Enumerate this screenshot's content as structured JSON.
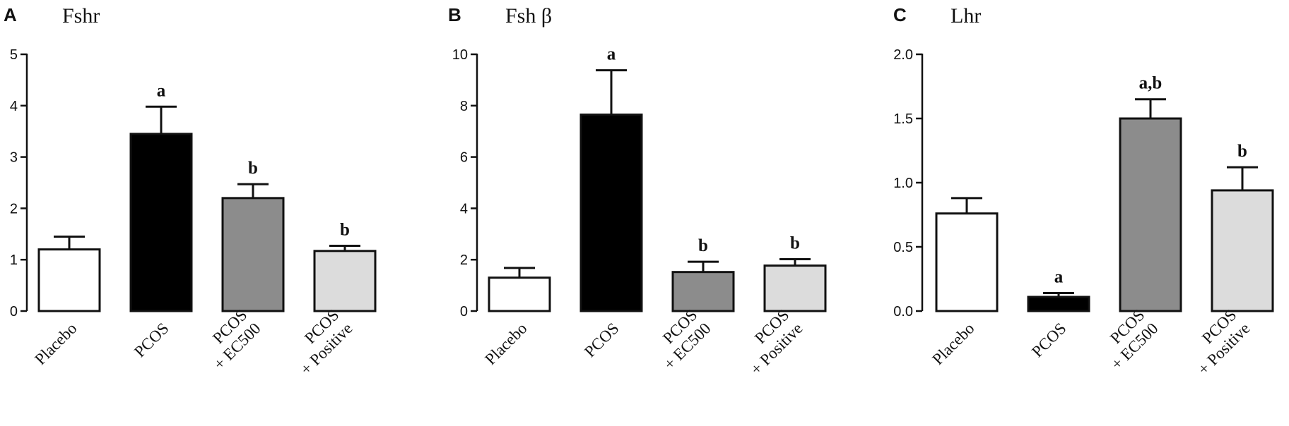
{
  "colors": {
    "axis": "#111111",
    "bar_stroke": "#111111",
    "bar_fills": [
      "#ffffff",
      "#000000",
      "#8c8c8c",
      "#dcdcdc"
    ]
  },
  "chart_data": [
    {
      "type": "bar",
      "panel": "A",
      "title": "Fshr",
      "categories": [
        [
          "Placebo"
        ],
        [
          "PCOS"
        ],
        [
          "PCOS",
          "+ EC500"
        ],
        [
          "PCOS",
          "+ Positive"
        ]
      ],
      "values": [
        1.2,
        3.45,
        2.2,
        1.17
      ],
      "errors": [
        0.25,
        0.53,
        0.27,
        0.1
      ],
      "annotations": [
        "",
        "a",
        "b",
        "b"
      ],
      "ylim": [
        0,
        5
      ],
      "yticks": [
        "0",
        "1",
        "2",
        "3",
        "4",
        "5"
      ],
      "ytick_values": [
        0,
        1,
        2,
        3,
        4,
        5
      ],
      "xlabel": "",
      "ylabel": "",
      "grid": false
    },
    {
      "type": "bar",
      "panel": "B",
      "title": "Fsh β",
      "categories": [
        [
          "Placebo"
        ],
        [
          "PCOS"
        ],
        [
          "PCOS",
          "+ EC500"
        ],
        [
          "PCOS",
          "+ Positive"
        ]
      ],
      "values": [
        1.3,
        7.65,
        1.52,
        1.77
      ],
      "errors": [
        0.38,
        1.73,
        0.4,
        0.25
      ],
      "annotations": [
        "",
        "a",
        "b",
        "b"
      ],
      "ylim": [
        0,
        10
      ],
      "yticks": [
        "0",
        "2",
        "4",
        "6",
        "8",
        "10"
      ],
      "ytick_values": [
        0,
        2,
        4,
        6,
        8,
        10
      ],
      "xlabel": "",
      "ylabel": "",
      "grid": false
    },
    {
      "type": "bar",
      "panel": "C",
      "title": "Lhr",
      "categories": [
        [
          "Placebo"
        ],
        [
          "PCOS"
        ],
        [
          "PCOS",
          "+ EC500"
        ],
        [
          "PCOS",
          "+ Positive"
        ]
      ],
      "values": [
        0.76,
        0.11,
        1.5,
        0.94
      ],
      "errors": [
        0.12,
        0.03,
        0.15,
        0.18
      ],
      "annotations": [
        "",
        "a",
        "a,b",
        "b"
      ],
      "ylim": [
        0,
        2
      ],
      "yticks": [
        "0.0",
        "0.5",
        "1.0",
        "1.5",
        "2.0"
      ],
      "ytick_values": [
        0,
        0.5,
        1,
        1.5,
        2
      ],
      "xlabel": "",
      "ylabel": "",
      "grid": false
    }
  ]
}
